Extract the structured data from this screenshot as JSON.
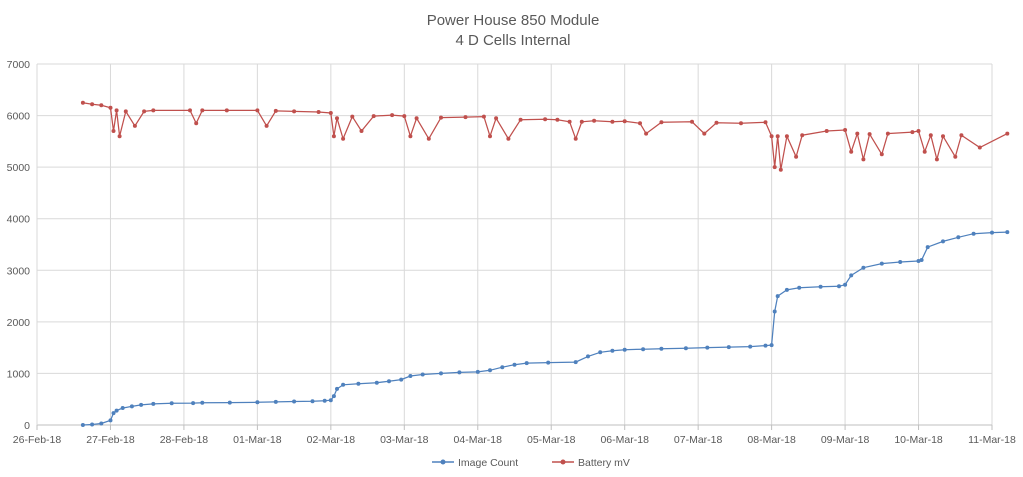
{
  "chart_data": {
    "type": "line",
    "title": "Power House 850 Module",
    "subtitle": "4 D Cells Internal",
    "xlabel": "",
    "ylabel": "",
    "x_axis": {
      "type": "date",
      "min": "26-Feb-18",
      "max": "11-Mar-18",
      "ticks": [
        "26-Feb-18",
        "27-Feb-18",
        "28-Feb-18",
        "01-Mar-18",
        "02-Mar-18",
        "03-Mar-18",
        "04-Mar-18",
        "05-Mar-18",
        "06-Mar-18",
        "07-Mar-18",
        "08-Mar-18",
        "09-Mar-18",
        "10-Mar-18",
        "11-Mar-18"
      ]
    },
    "ylim": [
      0,
      7000
    ],
    "yticks": [
      "0",
      "1000",
      "2000",
      "3000",
      "4000",
      "5000",
      "6000",
      "7000"
    ],
    "grid": true,
    "legend": "bottom",
    "series": [
      {
        "name": "Image Count",
        "color": "#4f81bd",
        "points": [
          [
            "26-Feb-18 15:00",
            0
          ],
          [
            "26-Feb-18 18:00",
            10
          ],
          [
            "26-Feb-18 21:00",
            30
          ],
          [
            "27-Feb-18 00:00",
            90
          ],
          [
            "27-Feb-18 01:00",
            230
          ],
          [
            "27-Feb-18 02:00",
            280
          ],
          [
            "27-Feb-18 04:00",
            330
          ],
          [
            "27-Feb-18 07:00",
            360
          ],
          [
            "27-Feb-18 10:00",
            390
          ],
          [
            "27-Feb-18 14:00",
            410
          ],
          [
            "27-Feb-18 20:00",
            420
          ],
          [
            "28-Feb-18 03:00",
            425
          ],
          [
            "28-Feb-18 06:00",
            430
          ],
          [
            "28-Feb-18 15:00",
            435
          ],
          [
            "01-Mar-18 00:00",
            440
          ],
          [
            "01-Mar-18 06:00",
            448
          ],
          [
            "01-Mar-18 12:00",
            455
          ],
          [
            "01-Mar-18 18:00",
            460
          ],
          [
            "01-Mar-18 22:00",
            470
          ],
          [
            "02-Mar-18 00:00",
            480
          ],
          [
            "02-Mar-18 01:00",
            560
          ],
          [
            "02-Mar-18 02:00",
            700
          ],
          [
            "02-Mar-18 04:00",
            780
          ],
          [
            "02-Mar-18 09:00",
            800
          ],
          [
            "02-Mar-18 15:00",
            820
          ],
          [
            "02-Mar-18 19:00",
            850
          ],
          [
            "02-Mar-18 23:00",
            880
          ],
          [
            "03-Mar-18 02:00",
            950
          ],
          [
            "03-Mar-18 06:00",
            980
          ],
          [
            "03-Mar-18 12:00",
            1000
          ],
          [
            "03-Mar-18 18:00",
            1020
          ],
          [
            "04-Mar-18 00:00",
            1030
          ],
          [
            "04-Mar-18 04:00",
            1060
          ],
          [
            "04-Mar-18 08:00",
            1120
          ],
          [
            "04-Mar-18 12:00",
            1170
          ],
          [
            "04-Mar-18 16:00",
            1200
          ],
          [
            "04-Mar-18 23:00",
            1210
          ],
          [
            "05-Mar-18 08:00",
            1220
          ],
          [
            "05-Mar-18 12:00",
            1330
          ],
          [
            "05-Mar-18 16:00",
            1410
          ],
          [
            "05-Mar-18 20:00",
            1440
          ],
          [
            "06-Mar-18 00:00",
            1460
          ],
          [
            "06-Mar-18 06:00",
            1470
          ],
          [
            "06-Mar-18 12:00",
            1480
          ],
          [
            "06-Mar-18 20:00",
            1490
          ],
          [
            "07-Mar-18 03:00",
            1500
          ],
          [
            "07-Mar-18 10:00",
            1510
          ],
          [
            "07-Mar-18 17:00",
            1520
          ],
          [
            "07-Mar-18 22:00",
            1540
          ],
          [
            "08-Mar-18 00:00",
            1550
          ],
          [
            "08-Mar-18 01:00",
            2200
          ],
          [
            "08-Mar-18 02:00",
            2500
          ],
          [
            "08-Mar-18 05:00",
            2620
          ],
          [
            "08-Mar-18 09:00",
            2660
          ],
          [
            "08-Mar-18 16:00",
            2680
          ],
          [
            "08-Mar-18 22:00",
            2690
          ],
          [
            "09-Mar-18 00:00",
            2720
          ],
          [
            "09-Mar-18 02:00",
            2900
          ],
          [
            "09-Mar-18 06:00",
            3050
          ],
          [
            "09-Mar-18 12:00",
            3130
          ],
          [
            "09-Mar-18 18:00",
            3160
          ],
          [
            "10-Mar-18 00:00",
            3180
          ],
          [
            "10-Mar-18 01:00",
            3200
          ],
          [
            "10-Mar-18 03:00",
            3450
          ],
          [
            "10-Mar-18 08:00",
            3560
          ],
          [
            "10-Mar-18 13:00",
            3640
          ],
          [
            "10-Mar-18 18:00",
            3710
          ],
          [
            "11-Mar-18 00:00",
            3730
          ],
          [
            "11-Mar-18 05:00",
            3740
          ]
        ]
      },
      {
        "name": "Battery mV",
        "color": "#c0504d",
        "points": [
          [
            "26-Feb-18 15:00",
            6250
          ],
          [
            "26-Feb-18 18:00",
            6220
          ],
          [
            "26-Feb-18 21:00",
            6200
          ],
          [
            "27-Feb-18 00:00",
            6150
          ],
          [
            "27-Feb-18 01:00",
            5700
          ],
          [
            "27-Feb-18 02:00",
            6100
          ],
          [
            "27-Feb-18 03:00",
            5600
          ],
          [
            "27-Feb-18 05:00",
            6080
          ],
          [
            "27-Feb-18 08:00",
            5800
          ],
          [
            "27-Feb-18 11:00",
            6080
          ],
          [
            "27-Feb-18 14:00",
            6100
          ],
          [
            "28-Feb-18 02:00",
            6100
          ],
          [
            "28-Feb-18 04:00",
            5850
          ],
          [
            "28-Feb-18 06:00",
            6100
          ],
          [
            "28-Feb-18 14:00",
            6100
          ],
          [
            "01-Mar-18 00:00",
            6100
          ],
          [
            "01-Mar-18 03:00",
            5800
          ],
          [
            "01-Mar-18 06:00",
            6090
          ],
          [
            "01-Mar-18 12:00",
            6080
          ],
          [
            "01-Mar-18 20:00",
            6070
          ],
          [
            "02-Mar-18 00:00",
            6050
          ],
          [
            "02-Mar-18 01:00",
            5600
          ],
          [
            "02-Mar-18 02:00",
            5950
          ],
          [
            "02-Mar-18 04:00",
            5550
          ],
          [
            "02-Mar-18 07:00",
            5980
          ],
          [
            "02-Mar-18 10:00",
            5700
          ],
          [
            "02-Mar-18 14:00",
            5990
          ],
          [
            "02-Mar-18 20:00",
            6010
          ],
          [
            "03-Mar-18 00:00",
            5990
          ],
          [
            "03-Mar-18 02:00",
            5600
          ],
          [
            "03-Mar-18 04:00",
            5950
          ],
          [
            "03-Mar-18 08:00",
            5550
          ],
          [
            "03-Mar-18 12:00",
            5960
          ],
          [
            "03-Mar-18 20:00",
            5970
          ],
          [
            "04-Mar-18 02:00",
            5980
          ],
          [
            "04-Mar-18 04:00",
            5600
          ],
          [
            "04-Mar-18 06:00",
            5950
          ],
          [
            "04-Mar-18 10:00",
            5550
          ],
          [
            "04-Mar-18 14:00",
            5920
          ],
          [
            "04-Mar-18 22:00",
            5930
          ],
          [
            "05-Mar-18 02:00",
            5920
          ],
          [
            "05-Mar-18 06:00",
            5880
          ],
          [
            "05-Mar-18 08:00",
            5550
          ],
          [
            "05-Mar-18 10:00",
            5880
          ],
          [
            "05-Mar-18 14:00",
            5900
          ],
          [
            "05-Mar-18 20:00",
            5880
          ],
          [
            "06-Mar-18 00:00",
            5890
          ],
          [
            "06-Mar-18 05:00",
            5850
          ],
          [
            "06-Mar-18 07:00",
            5650
          ],
          [
            "06-Mar-18 12:00",
            5870
          ],
          [
            "06-Mar-18 22:00",
            5880
          ],
          [
            "07-Mar-18 02:00",
            5650
          ],
          [
            "07-Mar-18 06:00",
            5860
          ],
          [
            "07-Mar-18 14:00",
            5850
          ],
          [
            "07-Mar-18 22:00",
            5870
          ],
          [
            "08-Mar-18 00:00",
            5600
          ],
          [
            "08-Mar-18 01:00",
            5000
          ],
          [
            "08-Mar-18 02:00",
            5600
          ],
          [
            "08-Mar-18 03:00",
            4950
          ],
          [
            "08-Mar-18 05:00",
            5600
          ],
          [
            "08-Mar-18 08:00",
            5200
          ],
          [
            "08-Mar-18 10:00",
            5620
          ],
          [
            "08-Mar-18 18:00",
            5700
          ],
          [
            "09-Mar-18 00:00",
            5720
          ],
          [
            "09-Mar-18 02:00",
            5300
          ],
          [
            "09-Mar-18 04:00",
            5650
          ],
          [
            "09-Mar-18 06:00",
            5150
          ],
          [
            "09-Mar-18 08:00",
            5640
          ],
          [
            "09-Mar-18 12:00",
            5250
          ],
          [
            "09-Mar-18 14:00",
            5650
          ],
          [
            "09-Mar-18 22:00",
            5680
          ],
          [
            "10-Mar-18 00:00",
            5700
          ],
          [
            "10-Mar-18 02:00",
            5300
          ],
          [
            "10-Mar-18 04:00",
            5620
          ],
          [
            "10-Mar-18 06:00",
            5150
          ],
          [
            "10-Mar-18 08:00",
            5600
          ],
          [
            "10-Mar-18 12:00",
            5200
          ],
          [
            "10-Mar-18 14:00",
            5620
          ],
          [
            "10-Mar-18 20:00",
            5380
          ],
          [
            "11-Mar-18 05:00",
            5650
          ]
        ]
      }
    ]
  }
}
